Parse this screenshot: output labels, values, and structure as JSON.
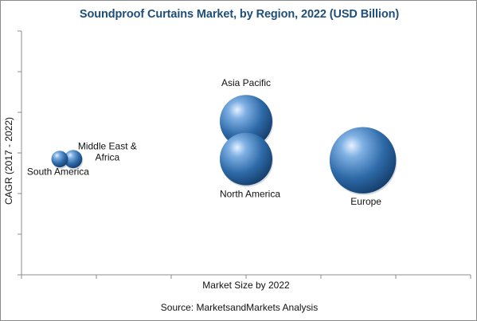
{
  "title": "Soundproof Curtains Market, by Region, 2022 (USD Billion)",
  "source": "Source: MarketsandMarkets Analysis",
  "chart_data": {
    "type": "scatter",
    "title": "Soundproof Curtains Market, by Region, 2022 (USD Billion)",
    "xlabel": "Market Size by 2022",
    "ylabel": "CAGR (2017 - 2022)",
    "x_ticks_labeled": false,
    "y_ticks_labeled": false,
    "grid": false,
    "legend": "none",
    "bubble_color": "#2e6aa8",
    "series": [
      {
        "points": [
          {
            "label": "Asia Pacific",
            "x": 5.0,
            "y": 6.3,
            "size": 1.0
          },
          {
            "label": "North America",
            "x": 5.0,
            "y": 4.75,
            "size": 1.0
          },
          {
            "label": "Europe",
            "x": 7.6,
            "y": 4.7,
            "size": 1.6
          },
          {
            "label": "Middle East & Africa",
            "x": 1.15,
            "y": 4.75,
            "size": 0.12
          },
          {
            "label": "South America",
            "x": 0.85,
            "y": 4.75,
            "size": 0.1
          }
        ]
      }
    ],
    "xlim": [
      0,
      10
    ],
    "ylim": [
      0,
      10
    ]
  }
}
